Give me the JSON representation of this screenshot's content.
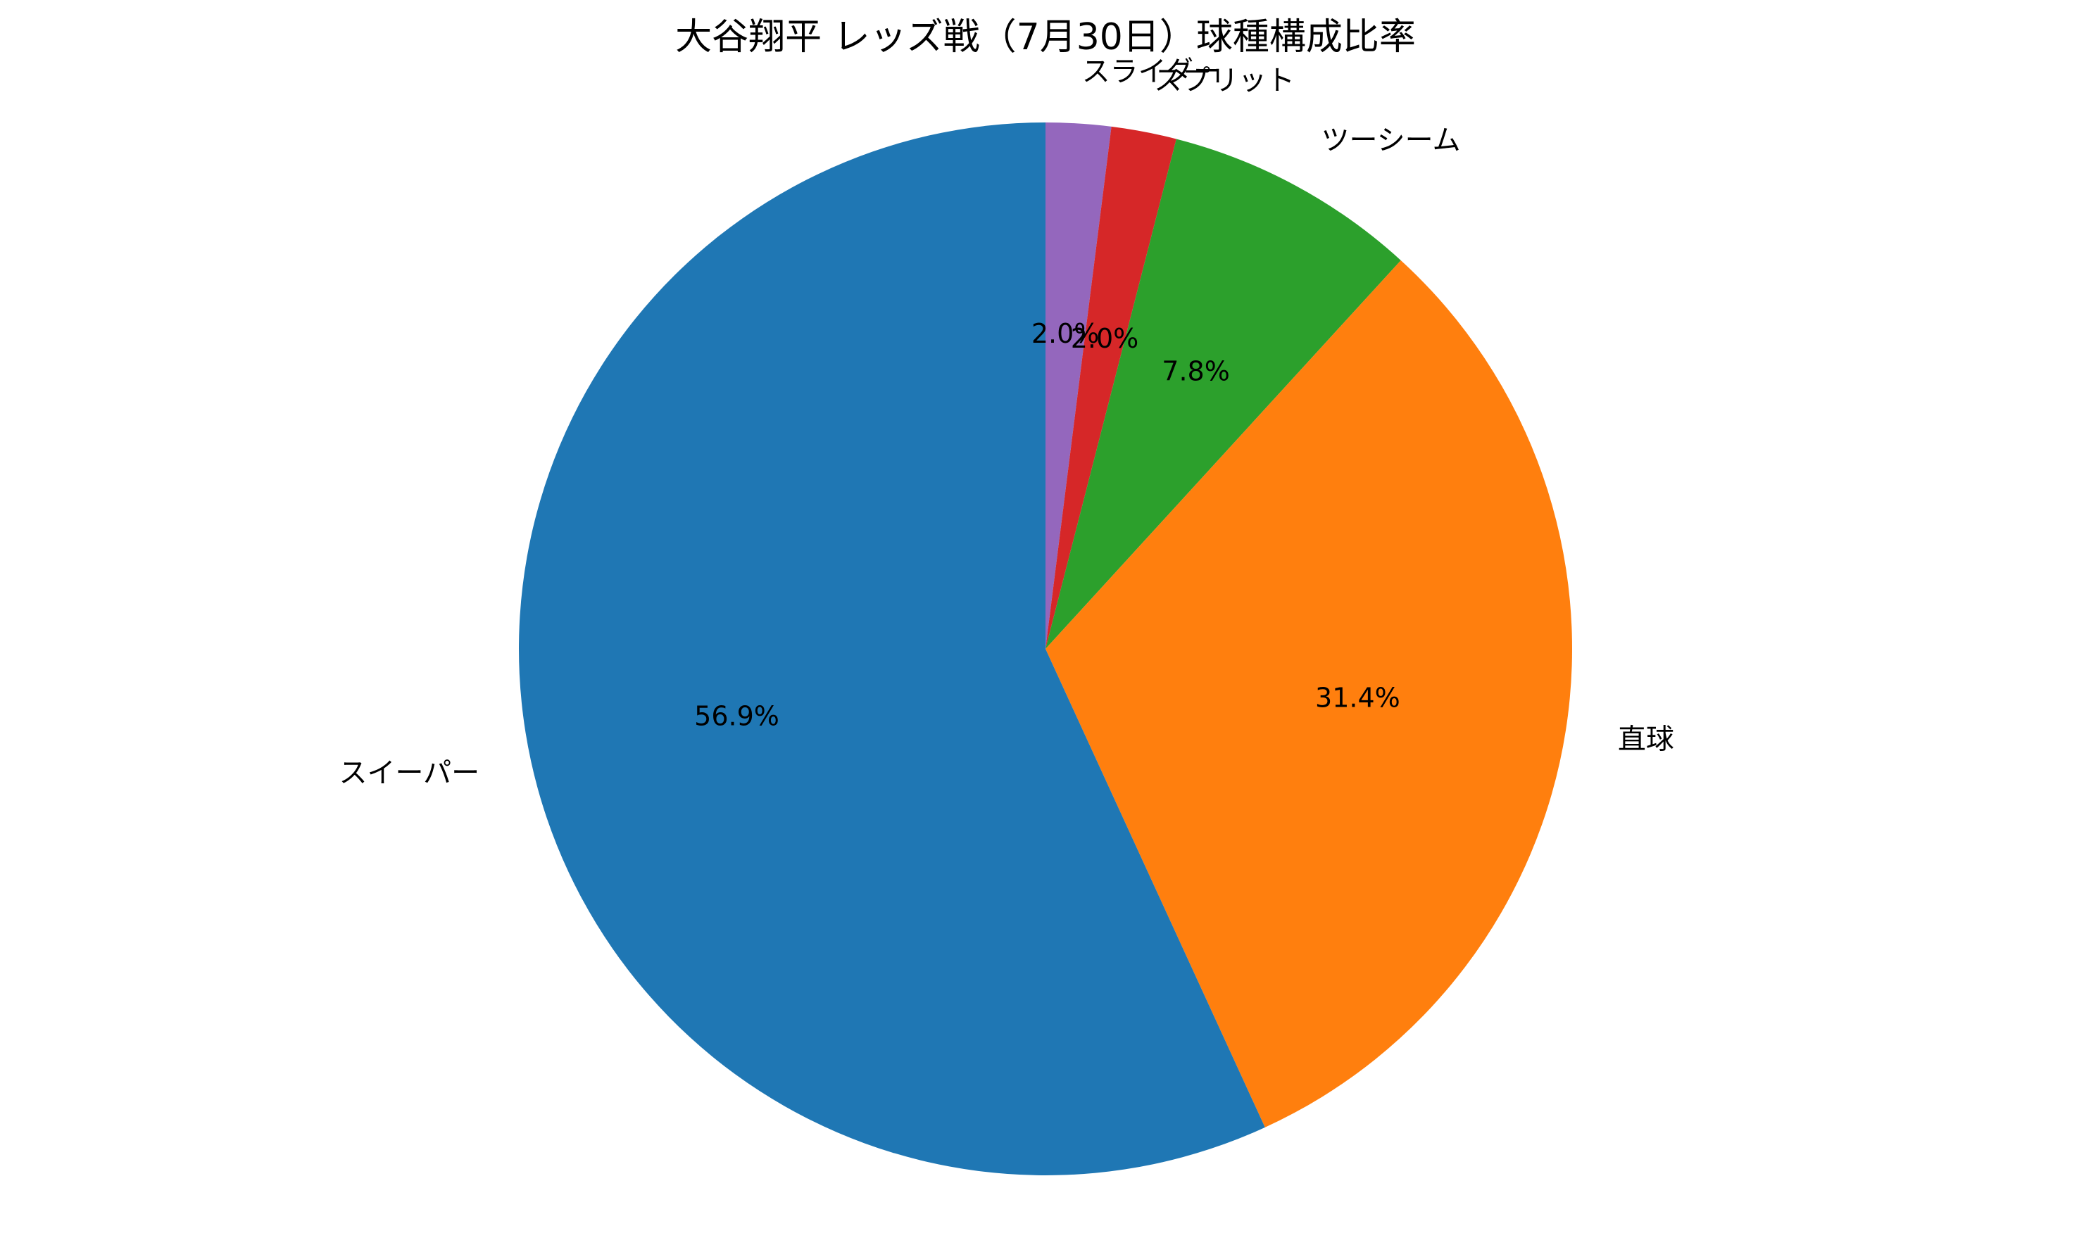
{
  "chart_data": {
    "type": "pie",
    "title": "大谷翔平 レッズ戦（7月30日）球種構成比率",
    "start_angle_deg": 90,
    "direction": "clockwise",
    "slices": [
      {
        "label": "スライダー",
        "value": 2.0,
        "pct_label": "2.0%",
        "color": "#9467bd"
      },
      {
        "label": "スプリット",
        "value": 2.0,
        "pct_label": "2.0%",
        "color": "#d62728"
      },
      {
        "label": "ツーシーム",
        "value": 7.8,
        "pct_label": "7.8%",
        "color": "#2ca02c"
      },
      {
        "label": "直球",
        "value": 31.4,
        "pct_label": "31.4%",
        "color": "#ff7f0e"
      },
      {
        "label": "スイーパー",
        "value": 56.9,
        "pct_label": "56.9%",
        "color": "#1f77b4"
      }
    ]
  }
}
